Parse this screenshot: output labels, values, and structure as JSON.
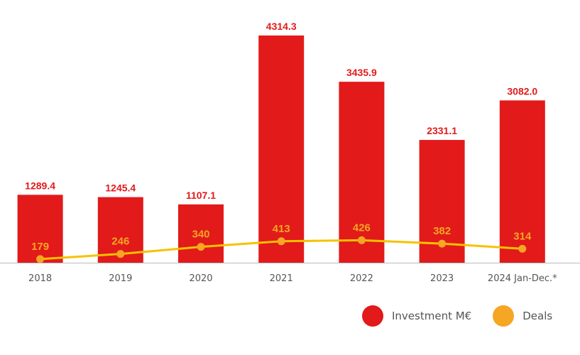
{
  "colors": {
    "investment": "#e21a1a",
    "deals": "#f5a623",
    "deals_line": "#f6c200",
    "axis": "#bbbbbb",
    "tick_text": "#555555"
  },
  "chart_data": {
    "type": "bar",
    "categories": [
      "2018",
      "2019",
      "2020",
      "2021",
      "2022",
      "2023",
      "2024 Jan-Dec.*"
    ],
    "series": [
      {
        "name": "Investment  M€",
        "type": "bar",
        "values": [
          1289.4,
          1245.4,
          1107.1,
          4314.3,
          3435.9,
          2331.1,
          3082.0
        ],
        "labels": [
          "1289.4",
          "1245.4",
          "1107.1",
          "4314.3",
          "3435.9",
          "2331.1",
          "3082.0"
        ]
      },
      {
        "name": "Deals",
        "type": "line",
        "values": [
          179,
          246,
          340,
          413,
          426,
          382,
          314
        ],
        "labels": [
          "179",
          "246",
          "340",
          "413",
          "426",
          "382",
          "314"
        ]
      }
    ],
    "legend_position": "bottom-right",
    "grid": false
  },
  "legend": {
    "investment_label": "Investment  M€",
    "deals_label": "Deals"
  }
}
